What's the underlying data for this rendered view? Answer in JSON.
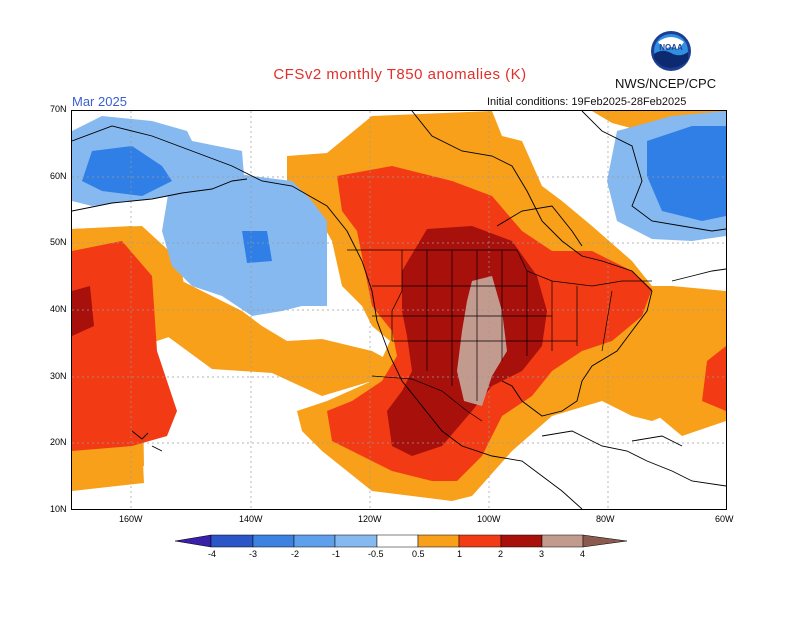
{
  "header": {
    "title": "CFSv2 monthly T850 anomalies (K)",
    "month": "Mar 2025",
    "agency": "NWS/NCEP/CPC",
    "initial_conditions": "Initial conditions: 19Feb2025-28Feb2025",
    "logo_text": "NOAA"
  },
  "axes": {
    "lat_labels": [
      "70N",
      "60N",
      "50N",
      "40N",
      "30N",
      "20N",
      "10N"
    ],
    "lon_labels": [
      "160W",
      "140W",
      "120W",
      "100W",
      "80W",
      "60W"
    ]
  },
  "colorbar": {
    "labels": [
      "-4",
      "-3",
      "-2",
      "-1",
      "-0.5",
      "0.5",
      "1",
      "2",
      "3",
      "4"
    ],
    "colors": [
      "#3a1fa8",
      "#2a56c8",
      "#3d82e0",
      "#86b9f0",
      "#ffffff",
      "#f8a01a",
      "#f23b14",
      "#a8100c",
      "#c29a8e",
      "#8a5a4e"
    ]
  },
  "colors": {
    "neg_strong": "#2f7fe6",
    "neg_light": "#86b9f0",
    "pos_05": "#f8a01a",
    "pos_1": "#f23b14",
    "pos_2": "#a8100c",
    "pos_3": "#c29a8e"
  }
}
